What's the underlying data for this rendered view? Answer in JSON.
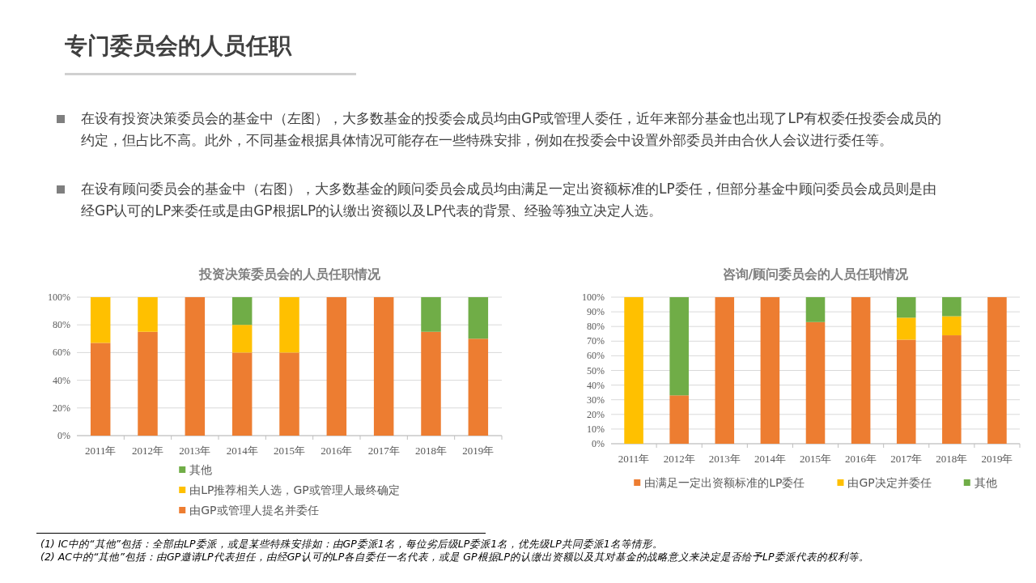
{
  "chart_data": [
    {
      "type": "other",
      "title": "专门委员会的人员任职",
      "annotations": [
        "在设有投资决策委员会的基金中（左图），大多数基金的投委会成员均由GP或管理人委任，近年来部分基金也出现了LP有权委任投委会成员的约定，但占比不高。此外，不同基金根据具体情况可能存在一些特殊安排，例如在投委会中设置外部委员并由合伙人会议进行委任等。",
        "在设有顾问委员会的基金中（右图），大多数基金的顾问委员会成员均由满足一定出资额标准的LP委任，但部分基金中顾问委员会成员则是由经GP认可的LP来委任或是由GP根据LP的认缴出资额以及LP代表的背景、经验等独立决定人选。"
      ]
    },
    {
      "type": "bar",
      "stacked": true,
      "title": "投资决策委员会的人员任职情况",
      "categories": [
        "2011年",
        "2012年",
        "2013年",
        "2014年",
        "2015年",
        "2016年",
        "2017年",
        "2018年",
        "2019年"
      ],
      "series": [
        {
          "name": "由GP或管理人提名并委任",
          "color": "#ed7d31",
          "values": [
            67,
            75,
            100,
            60,
            60,
            100,
            100,
            75,
            70
          ]
        },
        {
          "name": "由LP推荐相关人选，GP或管理人最终确定",
          "color": "#ffc000",
          "values": [
            33,
            25,
            0,
            20,
            40,
            0,
            0,
            0,
            0
          ]
        },
        {
          "name": "其他",
          "color": "#70ad47",
          "values": [
            0,
            0,
            0,
            20,
            0,
            0,
            0,
            25,
            30
          ]
        }
      ],
      "ylim": [
        0,
        100
      ],
      "yticks": [
        {
          "value": 0,
          "label": "0%"
        },
        {
          "value": 20,
          "label": "20%"
        },
        {
          "value": 40,
          "label": "40%"
        },
        {
          "value": 60,
          "label": "60%"
        },
        {
          "value": 80,
          "label": "80%"
        },
        {
          "value": 100,
          "label": "100%"
        }
      ],
      "grid": "y",
      "legend": "bottom"
    },
    {
      "type": "bar",
      "stacked": true,
      "title": "咨询/顾问委员会的人员任职情况",
      "categories": [
        "2011年",
        "2012年",
        "2013年",
        "2014年",
        "2015年",
        "2016年",
        "2017年",
        "2018年",
        "2019年"
      ],
      "series": [
        {
          "name": "由满足一定出资额标准的LP委任",
          "color": "#ed7d31",
          "values": [
            0,
            33,
            100,
            100,
            83,
            100,
            71,
            74,
            100
          ]
        },
        {
          "name": "由GP决定并委任",
          "color": "#ffc000",
          "values": [
            100,
            0,
            0,
            0,
            0,
            0,
            15,
            13,
            0
          ]
        },
        {
          "name": "其他",
          "color": "#70ad47",
          "values": [
            0,
            67,
            0,
            0,
            17,
            0,
            14,
            13,
            0
          ]
        }
      ],
      "ylim": [
        0,
        100
      ],
      "yticks": [
        {
          "value": 0,
          "label": "0%"
        },
        {
          "value": 10,
          "label": "10%"
        },
        {
          "value": 20,
          "label": "20%"
        },
        {
          "value": 30,
          "label": "30%"
        },
        {
          "value": 40,
          "label": "40%"
        },
        {
          "value": 50,
          "label": "50%"
        },
        {
          "value": 60,
          "label": "60%"
        },
        {
          "value": 70,
          "label": "70%"
        },
        {
          "value": 80,
          "label": "80%"
        },
        {
          "value": 90,
          "label": "90%"
        },
        {
          "value": 100,
          "label": "100%"
        }
      ],
      "grid": "y",
      "legend": "bottom"
    },
    {
      "type": "other",
      "annotations": [
        "(1) IC中的“其他”包括：全部由LP委派，或是某些特殊安排如：由GP委派1名，每位劣后级LP委派1名，优先级LP共同委派1名等情形。",
        "(2) AC中的“其他”包括：由GP邀请LP代表担任，由经GP认可的LP各自委任一名代表，或是 GP根据LP的认缴出资额以及其对基金的战略意义来决定是否给予LP委派代表的权利等。"
      ]
    }
  ]
}
